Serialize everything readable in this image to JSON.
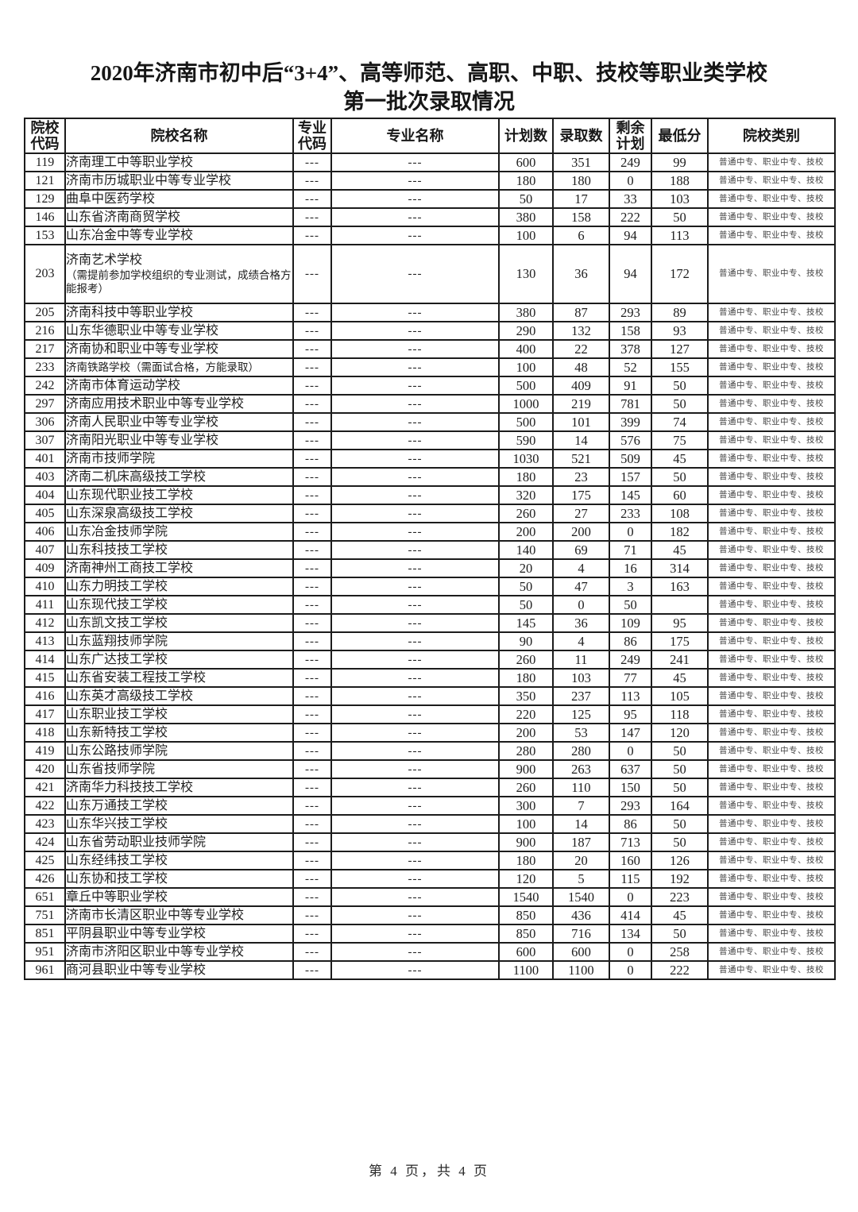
{
  "page": {
    "title_line1": "2020年济南市初中后“3+4”、高等师范、高职、中职、技校等职业类学校",
    "title_line2": "第一批次录取情况",
    "footer": "第 4 页，共 4 页"
  },
  "table": {
    "headers": [
      {
        "label": "院校\n代码"
      },
      {
        "label": "院校名称"
      },
      {
        "label": "专业\n代码"
      },
      {
        "label": "专业名称"
      },
      {
        "label": "计划数"
      },
      {
        "label": "录取数"
      },
      {
        "label": "剩余\n计划"
      },
      {
        "label": "最低分"
      },
      {
        "label": "院校类别"
      }
    ],
    "rows": [
      {
        "code": "119",
        "name": "济南理工中等职业学校",
        "major_code": "---",
        "major_name": "---",
        "plan": "600",
        "admitted": "351",
        "remaining": "249",
        "min_score": "99",
        "category": "普通中专、职业中专、技校"
      },
      {
        "code": "121",
        "name": "济南市历城职业中等专业学校",
        "major_code": "---",
        "major_name": "---",
        "plan": "180",
        "admitted": "180",
        "remaining": "0",
        "min_score": "188",
        "category": "普通中专、职业中专、技校"
      },
      {
        "code": "129",
        "name": "曲阜中医药学校",
        "major_code": "---",
        "major_name": "---",
        "plan": "50",
        "admitted": "17",
        "remaining": "33",
        "min_score": "103",
        "category": "普通中专、职业中专、技校"
      },
      {
        "code": "146",
        "name": "山东省济南商贸学校",
        "major_code": "---",
        "major_name": "---",
        "plan": "380",
        "admitted": "158",
        "remaining": "222",
        "min_score": "50",
        "category": "普通中专、职业中专、技校"
      },
      {
        "code": "153",
        "name": "山东冶金中等专业学校",
        "major_code": "---",
        "major_name": "---",
        "plan": "100",
        "admitted": "6",
        "remaining": "94",
        "min_score": "113",
        "category": "普通中专、职业中专、技校"
      },
      {
        "code": "203",
        "name": "济南艺术学校",
        "note": "（需提前参加学校组织的专业测试，成绩合格方能报考）",
        "tall": true,
        "major_code": "---",
        "major_name": "---",
        "plan": "130",
        "admitted": "36",
        "remaining": "94",
        "min_score": "172",
        "category": "普通中专、职业中专、技校"
      },
      {
        "code": "205",
        "name": "济南科技中等职业学校",
        "major_code": "---",
        "major_name": "---",
        "plan": "380",
        "admitted": "87",
        "remaining": "293",
        "min_score": "89",
        "category": "普通中专、职业中专、技校"
      },
      {
        "code": "216",
        "name": "山东华德职业中等专业学校",
        "major_code": "---",
        "major_name": "---",
        "plan": "290",
        "admitted": "132",
        "remaining": "158",
        "min_score": "93",
        "category": "普通中专、职业中专、技校"
      },
      {
        "code": "217",
        "name": "济南协和职业中等专业学校",
        "major_code": "---",
        "major_name": "---",
        "plan": "400",
        "admitted": "22",
        "remaining": "378",
        "min_score": "127",
        "category": "普通中专、职业中专、技校"
      },
      {
        "code": "233",
        "name": "济南铁路学校（需面试合格，方能录取）",
        "name_small": true,
        "major_code": "---",
        "major_name": "---",
        "plan": "100",
        "admitted": "48",
        "remaining": "52",
        "min_score": "155",
        "category": "普通中专、职业中专、技校"
      },
      {
        "code": "242",
        "name": "济南市体育运动学校",
        "major_code": "---",
        "major_name": "---",
        "plan": "500",
        "admitted": "409",
        "remaining": "91",
        "min_score": "50",
        "category": "普通中专、职业中专、技校"
      },
      {
        "code": "297",
        "name": "济南应用技术职业中等专业学校",
        "major_code": "---",
        "major_name": "---",
        "plan": "1000",
        "admitted": "219",
        "remaining": "781",
        "min_score": "50",
        "category": "普通中专、职业中专、技校"
      },
      {
        "code": "306",
        "name": "济南人民职业中等专业学校",
        "major_code": "---",
        "major_name": "---",
        "plan": "500",
        "admitted": "101",
        "remaining": "399",
        "min_score": "74",
        "category": "普通中专、职业中专、技校"
      },
      {
        "code": "307",
        "name": "济南阳光职业中等专业学校",
        "major_code": "---",
        "major_name": "---",
        "plan": "590",
        "admitted": "14",
        "remaining": "576",
        "min_score": "75",
        "category": "普通中专、职业中专、技校"
      },
      {
        "code": "401",
        "name": "济南市技师学院",
        "major_code": "---",
        "major_name": "---",
        "plan": "1030",
        "admitted": "521",
        "remaining": "509",
        "min_score": "45",
        "category": "普通中专、职业中专、技校"
      },
      {
        "code": "403",
        "name": "济南二机床高级技工学校",
        "major_code": "---",
        "major_name": "---",
        "plan": "180",
        "admitted": "23",
        "remaining": "157",
        "min_score": "50",
        "category": "普通中专、职业中专、技校"
      },
      {
        "code": "404",
        "name": "山东现代职业技工学校",
        "major_code": "---",
        "major_name": "---",
        "plan": "320",
        "admitted": "175",
        "remaining": "145",
        "min_score": "60",
        "category": "普通中专、职业中专、技校"
      },
      {
        "code": "405",
        "name": "山东深泉高级技工学校",
        "major_code": "---",
        "major_name": "---",
        "plan": "260",
        "admitted": "27",
        "remaining": "233",
        "min_score": "108",
        "category": "普通中专、职业中专、技校"
      },
      {
        "code": "406",
        "name": "山东冶金技师学院",
        "major_code": "---",
        "major_name": "---",
        "plan": "200",
        "admitted": "200",
        "remaining": "0",
        "min_score": "182",
        "category": "普通中专、职业中专、技校"
      },
      {
        "code": "407",
        "name": "山东科技技工学校",
        "major_code": "---",
        "major_name": "---",
        "plan": "140",
        "admitted": "69",
        "remaining": "71",
        "min_score": "45",
        "category": "普通中专、职业中专、技校"
      },
      {
        "code": "409",
        "name": "济南神州工商技工学校",
        "major_code": "---",
        "major_name": "---",
        "plan": "20",
        "admitted": "4",
        "remaining": "16",
        "min_score": "314",
        "category": "普通中专、职业中专、技校"
      },
      {
        "code": "410",
        "name": "山东力明技工学校",
        "major_code": "---",
        "major_name": "---",
        "plan": "50",
        "admitted": "47",
        "remaining": "3",
        "min_score": "163",
        "category": "普通中专、职业中专、技校"
      },
      {
        "code": "411",
        "name": "山东现代技工学校",
        "major_code": "---",
        "major_name": "---",
        "plan": "50",
        "admitted": "0",
        "remaining": "50",
        "min_score": "",
        "category": "普通中专、职业中专、技校"
      },
      {
        "code": "412",
        "name": "山东凯文技工学校",
        "major_code": "---",
        "major_name": "---",
        "plan": "145",
        "admitted": "36",
        "remaining": "109",
        "min_score": "95",
        "category": "普通中专、职业中专、技校"
      },
      {
        "code": "413",
        "name": "山东蓝翔技师学院",
        "major_code": "---",
        "major_name": "---",
        "plan": "90",
        "admitted": "4",
        "remaining": "86",
        "min_score": "175",
        "category": "普通中专、职业中专、技校"
      },
      {
        "code": "414",
        "name": "山东广达技工学校",
        "major_code": "---",
        "major_name": "---",
        "plan": "260",
        "admitted": "11",
        "remaining": "249",
        "min_score": "241",
        "category": "普通中专、职业中专、技校"
      },
      {
        "code": "415",
        "name": "山东省安装工程技工学校",
        "major_code": "---",
        "major_name": "---",
        "plan": "180",
        "admitted": "103",
        "remaining": "77",
        "min_score": "45",
        "category": "普通中专、职业中专、技校"
      },
      {
        "code": "416",
        "name": "山东英才高级技工学校",
        "major_code": "---",
        "major_name": "---",
        "plan": "350",
        "admitted": "237",
        "remaining": "113",
        "min_score": "105",
        "category": "普通中专、职业中专、技校"
      },
      {
        "code": "417",
        "name": "山东职业技工学校",
        "major_code": "---",
        "major_name": "---",
        "plan": "220",
        "admitted": "125",
        "remaining": "95",
        "min_score": "118",
        "category": "普通中专、职业中专、技校"
      },
      {
        "code": "418",
        "name": "山东新特技工学校",
        "major_code": "---",
        "major_name": "---",
        "plan": "200",
        "admitted": "53",
        "remaining": "147",
        "min_score": "120",
        "category": "普通中专、职业中专、技校"
      },
      {
        "code": "419",
        "name": "山东公路技师学院",
        "major_code": "---",
        "major_name": "---",
        "plan": "280",
        "admitted": "280",
        "remaining": "0",
        "min_score": "50",
        "category": "普通中专、职业中专、技校"
      },
      {
        "code": "420",
        "name": "山东省技师学院",
        "major_code": "---",
        "major_name": "---",
        "plan": "900",
        "admitted": "263",
        "remaining": "637",
        "min_score": "50",
        "category": "普通中专、职业中专、技校"
      },
      {
        "code": "421",
        "name": "济南华力科技技工学校",
        "major_code": "---",
        "major_name": "---",
        "plan": "260",
        "admitted": "110",
        "remaining": "150",
        "min_score": "50",
        "category": "普通中专、职业中专、技校"
      },
      {
        "code": "422",
        "name": "山东万通技工学校",
        "major_code": "---",
        "major_name": "---",
        "plan": "300",
        "admitted": "7",
        "remaining": "293",
        "min_score": "164",
        "category": "普通中专、职业中专、技校"
      },
      {
        "code": "423",
        "name": "山东华兴技工学校",
        "major_code": "---",
        "major_name": "---",
        "plan": "100",
        "admitted": "14",
        "remaining": "86",
        "min_score": "50",
        "category": "普通中专、职业中专、技校"
      },
      {
        "code": "424",
        "name": "山东省劳动职业技师学院",
        "major_code": "---",
        "major_name": "---",
        "plan": "900",
        "admitted": "187",
        "remaining": "713",
        "min_score": "50",
        "category": "普通中专、职业中专、技校"
      },
      {
        "code": "425",
        "name": "山东经纬技工学校",
        "major_code": "---",
        "major_name": "---",
        "plan": "180",
        "admitted": "20",
        "remaining": "160",
        "min_score": "126",
        "category": "普通中专、职业中专、技校"
      },
      {
        "code": "426",
        "name": "山东协和技工学校",
        "major_code": "---",
        "major_name": "---",
        "plan": "120",
        "admitted": "5",
        "remaining": "115",
        "min_score": "192",
        "category": "普通中专、职业中专、技校"
      },
      {
        "code": "651",
        "name": "章丘中等职业学校",
        "major_code": "---",
        "major_name": "---",
        "plan": "1540",
        "admitted": "1540",
        "remaining": "0",
        "min_score": "223",
        "category": "普通中专、职业中专、技校"
      },
      {
        "code": "751",
        "name": "济南市长清区职业中等专业学校",
        "major_code": "---",
        "major_name": "---",
        "plan": "850",
        "admitted": "436",
        "remaining": "414",
        "min_score": "45",
        "category": "普通中专、职业中专、技校"
      },
      {
        "code": "851",
        "name": "平阴县职业中等专业学校",
        "major_code": "---",
        "major_name": "---",
        "plan": "850",
        "admitted": "716",
        "remaining": "134",
        "min_score": "50",
        "category": "普通中专、职业中专、技校"
      },
      {
        "code": "951",
        "name": "济南市济阳区职业中等专业学校",
        "major_code": "---",
        "major_name": "---",
        "plan": "600",
        "admitted": "600",
        "remaining": "0",
        "min_score": "258",
        "category": "普通中专、职业中专、技校"
      },
      {
        "code": "961",
        "name": "商河县职业中等专业学校",
        "major_code": "---",
        "major_name": "---",
        "plan": "1100",
        "admitted": "1100",
        "remaining": "0",
        "min_score": "222",
        "category": "普通中专、职业中专、技校"
      }
    ]
  }
}
